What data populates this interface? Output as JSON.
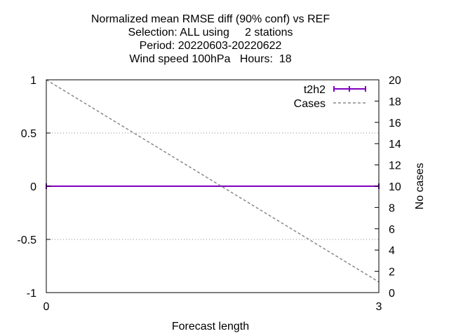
{
  "chart_data": {
    "type": "line",
    "title_lines": [
      "Normalized mean RMSE diff (90% conf) vs REF",
      "Selection: ALL using     2 stations",
      "Period: 20220603-20220622",
      "Wind speed 100hPa   Hours:  18"
    ],
    "xlabel": "Forecast length",
    "ylabel": "",
    "y2label": "No cases",
    "xlim": [
      0,
      3
    ],
    "ylim": [
      -1,
      1
    ],
    "y2lim": [
      0,
      20
    ],
    "x_ticks": [
      0,
      3
    ],
    "y_ticks": [
      "-1",
      "-0.5",
      "0",
      "0.5",
      "1"
    ],
    "y2_ticks": [
      "0",
      "2",
      "4",
      "6",
      "8",
      "10",
      "12",
      "14",
      "16",
      "18",
      "20"
    ],
    "grid": "horizontal dotted at 0.5 and -0.5",
    "legend_position": "top-right",
    "series": [
      {
        "name": "t2h2",
        "axis": "y1",
        "style": "solid-errorbars",
        "color": "#8000c0",
        "x": [
          0,
          3
        ],
        "y": [
          0,
          0
        ]
      },
      {
        "name": "Cases",
        "axis": "y2",
        "style": "dashed",
        "color": "#888888",
        "x": [
          0,
          3
        ],
        "y": [
          20,
          1
        ]
      }
    ]
  }
}
